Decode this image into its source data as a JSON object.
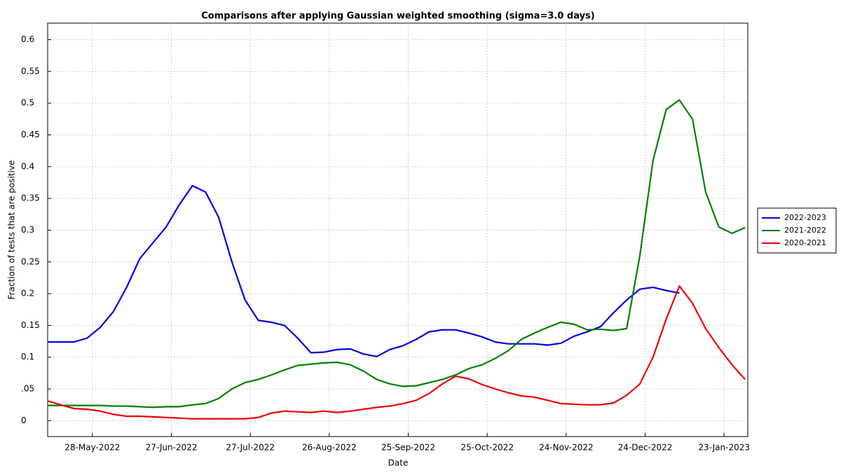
{
  "chart_data": {
    "type": "line",
    "title": "Comparisons after applying Gaussian weighted smoothing (sigma=3.0 days)",
    "x_label": "Date",
    "y_label": "Fraction of tests that are positive",
    "x": [
      "2022-05-11",
      "2022-05-16",
      "2022-05-21",
      "2022-05-26",
      "2022-05-31",
      "2022-06-05",
      "2022-06-10",
      "2022-06-15",
      "2022-06-20",
      "2022-06-25",
      "2022-06-30",
      "2022-07-05",
      "2022-07-10",
      "2022-07-15",
      "2022-07-20",
      "2022-07-25",
      "2022-07-30",
      "2022-08-04",
      "2022-08-09",
      "2022-08-14",
      "2022-08-19",
      "2022-08-24",
      "2022-08-29",
      "2022-09-03",
      "2022-09-08",
      "2022-09-13",
      "2022-09-18",
      "2022-09-23",
      "2022-09-28",
      "2022-10-03",
      "2022-10-08",
      "2022-10-13",
      "2022-10-18",
      "2022-10-23",
      "2022-10-28",
      "2022-11-02",
      "2022-11-07",
      "2022-11-12",
      "2022-11-17",
      "2022-11-22",
      "2022-11-27",
      "2022-12-02",
      "2022-12-07",
      "2022-12-12",
      "2022-12-17",
      "2022-12-22",
      "2022-12-27",
      "2023-01-01",
      "2023-01-06",
      "2023-01-11",
      "2023-01-16",
      "2023-01-21",
      "2023-01-26",
      "2023-01-31"
    ],
    "series": [
      {
        "name": "2022-2023",
        "color": "#0000e0",
        "values": [
          0.124,
          0.124,
          0.124,
          0.13,
          0.147,
          0.172,
          0.21,
          0.255,
          0.28,
          0.305,
          0.34,
          0.37,
          0.36,
          0.32,
          0.25,
          0.19,
          0.158,
          0.155,
          0.15,
          0.13,
          0.107,
          0.108,
          0.112,
          0.113,
          0.105,
          0.101,
          0.112,
          0.118,
          0.128,
          0.14,
          0.143,
          0.143,
          0.138,
          0.132,
          0.124,
          0.121,
          0.121,
          0.121,
          0.119,
          0.122,
          0.133,
          0.14,
          0.148,
          0.17,
          0.19,
          0.207,
          0.21,
          0.205,
          0.201,
          null,
          null,
          null,
          null,
          null
        ]
      },
      {
        "name": "2021-2022",
        "color": "#008000",
        "values": [
          0.024,
          0.024,
          0.024,
          0.024,
          0.024,
          0.023,
          0.023,
          0.022,
          0.021,
          0.022,
          0.022,
          0.025,
          0.027,
          0.035,
          0.05,
          0.06,
          0.065,
          0.072,
          0.08,
          0.087,
          0.089,
          0.091,
          0.092,
          0.088,
          0.078,
          0.065,
          0.058,
          0.054,
          0.055,
          0.06,
          0.065,
          0.072,
          0.082,
          0.088,
          0.098,
          0.11,
          0.128,
          0.138,
          0.147,
          0.155,
          0.152,
          0.143,
          0.144,
          0.142,
          0.145,
          0.26,
          0.41,
          0.49,
          0.505,
          0.475,
          0.36,
          0.305,
          0.295,
          0.304
        ]
      },
      {
        "name": "2020-2021",
        "color": "#ee0000",
        "values": [
          0.031,
          0.025,
          0.019,
          0.018,
          0.015,
          0.01,
          0.007,
          0.007,
          0.006,
          0.005,
          0.004,
          0.003,
          0.003,
          0.003,
          0.003,
          0.003,
          0.005,
          0.012,
          0.015,
          0.014,
          0.013,
          0.015,
          0.013,
          0.015,
          0.018,
          0.021,
          0.023,
          0.027,
          0.032,
          0.043,
          0.058,
          0.07,
          0.066,
          0.057,
          0.05,
          0.044,
          0.039,
          0.037,
          0.032,
          0.027,
          0.026,
          0.025,
          0.025,
          0.028,
          0.04,
          0.058,
          0.1,
          0.16,
          0.212,
          0.185,
          0.145,
          0.115,
          0.088,
          0.065
        ]
      }
    ],
    "xlim": [
      "2022-05-11",
      "2023-02-01"
    ],
    "xticks": [
      {
        "value": "2022-05-28",
        "label": "28-May-2022"
      },
      {
        "value": "2022-06-27",
        "label": "27-Jun-2022"
      },
      {
        "value": "2022-07-27",
        "label": "27-Jul-2022"
      },
      {
        "value": "2022-08-26",
        "label": "26-Aug-2022"
      },
      {
        "value": "2022-09-25",
        "label": "25-Sep-2022"
      },
      {
        "value": "2022-10-25",
        "label": "25-Oct-2022"
      },
      {
        "value": "2022-11-24",
        "label": "24-Nov-2022"
      },
      {
        "value": "2022-12-24",
        "label": "24-Dec-2022"
      },
      {
        "value": "2023-01-23",
        "label": "23-Jan-2023"
      }
    ],
    "ylim": [
      -0.025,
      0.626
    ],
    "yticks": [
      0,
      {
        "value": 0.05,
        "label": ".05"
      },
      0.1,
      0.15,
      0.2,
      0.25,
      0.3,
      0.35,
      0.4,
      0.45,
      0.5,
      0.55,
      0.6
    ],
    "grid": true,
    "legend": "right"
  }
}
